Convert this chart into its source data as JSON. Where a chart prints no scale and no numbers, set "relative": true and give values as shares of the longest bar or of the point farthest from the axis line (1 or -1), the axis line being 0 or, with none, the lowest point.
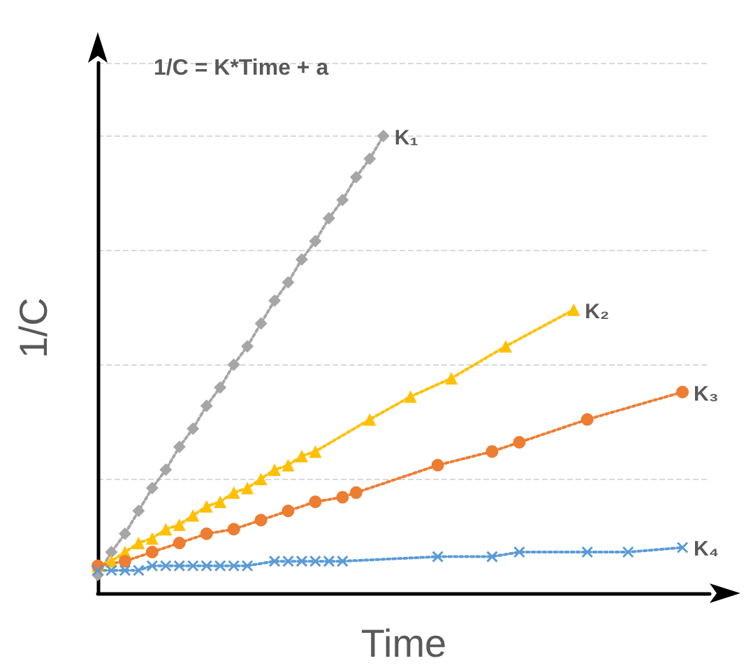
{
  "chart_data": {
    "type": "line",
    "title": "1/C = K*Time + a",
    "xlabel": "Time",
    "ylabel": "1/C",
    "relative": true,
    "grid": "y",
    "categories": [
      null,
      null,
      null,
      null,
      null,
      null,
      null,
      null,
      null,
      null,
      null,
      null,
      null,
      null,
      null,
      null,
      null,
      null,
      null,
      null,
      null,
      null,
      null,
      null,
      null,
      null,
      null,
      null,
      null,
      null,
      null,
      null,
      null,
      null,
      null,
      null,
      null,
      null,
      null,
      null,
      null,
      null,
      null,
      null,
      null,
      null
    ],
    "series": [
      {
        "color": "#a6a6a6",
        "marker": "diamond",
        "line_style": "dotted",
        "values": [
          0.04,
          0.09,
          0.13,
          0.18,
          0.23,
          0.27,
          0.32,
          0.36,
          0.41,
          0.45,
          0.5,
          0.54,
          0.59,
          0.64,
          0.68,
          0.73,
          0.77,
          0.82,
          0.86,
          0.91,
          0.95,
          1,
          null,
          null,
          null,
          null,
          null,
          null,
          null,
          null,
          null,
          null,
          null,
          null,
          null,
          null,
          null,
          null,
          null,
          null,
          null,
          null,
          null,
          null,
          null,
          null
        ]
      },
      {
        "color": "#ffc000",
        "marker": "triangle",
        "line_style": "dotted",
        "values": [
          0.06,
          0.07,
          0.09,
          0.11,
          0.12,
          0.14,
          0.15,
          0.17,
          0.19,
          0.2,
          0.22,
          0.23,
          0.25,
          0.27,
          0.28,
          0.3,
          0.31,
          null,
          null,
          null,
          0.38,
          null,
          null,
          0.43,
          null,
          null,
          0.47,
          null,
          null,
          null,
          0.54,
          null,
          null,
          null,
          null,
          0.62,
          null,
          null,
          null,
          null,
          null,
          null,
          null,
          null,
          null,
          null
        ]
      },
      {
        "color": "#ed7d31",
        "marker": "circle",
        "line_style": "dotted",
        "values": [
          0.06,
          null,
          0.07,
          null,
          0.09,
          null,
          0.11,
          null,
          0.13,
          null,
          0.14,
          null,
          0.16,
          null,
          0.18,
          null,
          0.2,
          null,
          0.21,
          0.22,
          null,
          null,
          null,
          null,
          null,
          0.28,
          null,
          null,
          null,
          0.31,
          null,
          0.33,
          null,
          null,
          null,
          null,
          0.38,
          null,
          null,
          null,
          null,
          null,
          null,
          0.44,
          null,
          null
        ]
      },
      {
        "color": "#5b9bd5",
        "marker": "cross",
        "line_style": "dotted",
        "values": [
          0.05,
          0.05,
          0.05,
          0.05,
          0.06,
          0.06,
          0.06,
          0.06,
          0.06,
          0.06,
          0.06,
          0.06,
          null,
          0.07,
          0.07,
          0.07,
          0.07,
          0.07,
          0.07,
          null,
          null,
          null,
          null,
          null,
          null,
          0.08,
          null,
          null,
          null,
          0.08,
          null,
          0.09,
          null,
          null,
          null,
          null,
          0.09,
          null,
          null,
          0.09,
          null,
          null,
          null,
          0.1,
          null,
          null
        ]
      }
    ],
    "annotations": [
      "K₁",
      "K₂",
      "K₃",
      "K₄"
    ]
  }
}
